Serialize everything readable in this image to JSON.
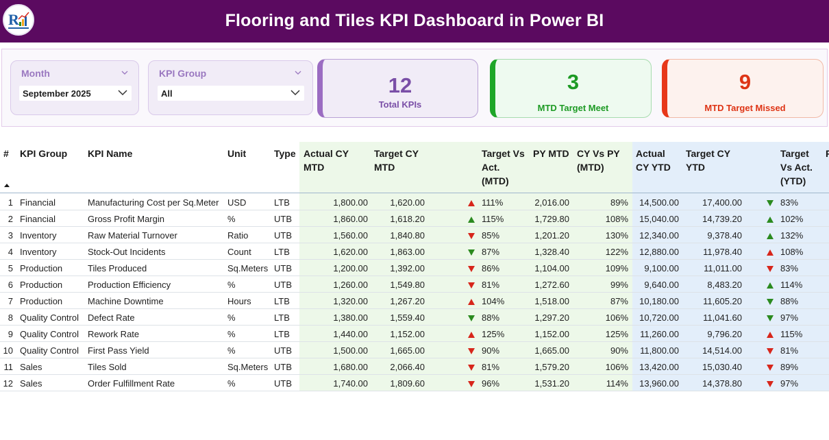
{
  "header": {
    "title": "Flooring and Tiles KPI Dashboard in Power BI"
  },
  "colors": {
    "header_bg": "#5b0a60",
    "green": "#2b8a1f",
    "red": "#d7261b",
    "accent": "#9b6cc2"
  },
  "filters": {
    "month": {
      "label": "Month",
      "value": "September 2025"
    },
    "kpi_group": {
      "label": "KPI Group",
      "value": "All"
    }
  },
  "cards": {
    "total": {
      "value": "12",
      "label": "Total KPIs"
    },
    "meet": {
      "value": "3",
      "label": "MTD Target Meet"
    },
    "missed": {
      "value": "9",
      "label": "MTD Target Missed"
    }
  },
  "table": {
    "headers": {
      "num": "#",
      "group": "KPI Group",
      "name": "KPI Name",
      "unit": "Unit",
      "type": "Type",
      "actual_mtd": [
        "Actual CY",
        "MTD"
      ],
      "target_mtd": [
        "Target CY",
        "MTD"
      ],
      "tva_mtd": [
        "Target Vs",
        "Act.",
        "(MTD)"
      ],
      "py_mtd": [
        "PY MTD"
      ],
      "cvp_mtd": [
        "CY Vs PY",
        "(MTD)"
      ],
      "actual_ytd": [
        "Actual",
        "CY YTD"
      ],
      "target_ytd": [
        "Target CY",
        "YTD"
      ],
      "tva_ytd": [
        "Target",
        "Vs Act.",
        "(YTD)"
      ],
      "extra": "P"
    },
    "rows": [
      {
        "num": "1",
        "group": "Financial",
        "name": "Manufacturing Cost per Sq.Meter",
        "unit": "USD",
        "type": "LTB",
        "actual_mtd": "1,800.00",
        "target_mtd": "1,620.00",
        "mtd_icon": "up-red",
        "mtd_pct": "111%",
        "py_mtd": "2,016.00",
        "cvp_mtd": "89%",
        "actual_ytd": "14,500.00",
        "target_ytd": "17,400.00",
        "ytd_icon": "down-green",
        "ytd_pct": "83%"
      },
      {
        "num": "2",
        "group": "Financial",
        "name": "Gross Profit Margin",
        "unit": "%",
        "type": "UTB",
        "actual_mtd": "1,860.00",
        "target_mtd": "1,618.20",
        "mtd_icon": "up-green",
        "mtd_pct": "115%",
        "py_mtd": "1,729.80",
        "cvp_mtd": "108%",
        "actual_ytd": "15,040.00",
        "target_ytd": "14,739.20",
        "ytd_icon": "up-green",
        "ytd_pct": "102%"
      },
      {
        "num": "3",
        "group": "Inventory",
        "name": "Raw Material Turnover",
        "unit": "Ratio",
        "type": "UTB",
        "actual_mtd": "1,560.00",
        "target_mtd": "1,840.80",
        "mtd_icon": "down-red",
        "mtd_pct": "85%",
        "py_mtd": "1,201.20",
        "cvp_mtd": "130%",
        "actual_ytd": "12,340.00",
        "target_ytd": "9,378.40",
        "ytd_icon": "up-green",
        "ytd_pct": "132%"
      },
      {
        "num": "4",
        "group": "Inventory",
        "name": "Stock-Out Incidents",
        "unit": "Count",
        "type": "LTB",
        "actual_mtd": "1,620.00",
        "target_mtd": "1,863.00",
        "mtd_icon": "down-green",
        "mtd_pct": "87%",
        "py_mtd": "1,328.40",
        "cvp_mtd": "122%",
        "actual_ytd": "12,880.00",
        "target_ytd": "11,978.40",
        "ytd_icon": "up-red",
        "ytd_pct": "108%"
      },
      {
        "num": "5",
        "group": "Production",
        "name": "Tiles Produced",
        "unit": "Sq.Meters",
        "type": "UTB",
        "actual_mtd": "1,200.00",
        "target_mtd": "1,392.00",
        "mtd_icon": "down-red",
        "mtd_pct": "86%",
        "py_mtd": "1,104.00",
        "cvp_mtd": "109%",
        "actual_ytd": "9,100.00",
        "target_ytd": "11,011.00",
        "ytd_icon": "down-red",
        "ytd_pct": "83%"
      },
      {
        "num": "6",
        "group": "Production",
        "name": "Production Efficiency",
        "unit": "%",
        "type": "UTB",
        "actual_mtd": "1,260.00",
        "target_mtd": "1,549.80",
        "mtd_icon": "down-red",
        "mtd_pct": "81%",
        "py_mtd": "1,272.60",
        "cvp_mtd": "99%",
        "actual_ytd": "9,640.00",
        "target_ytd": "8,483.20",
        "ytd_icon": "up-green",
        "ytd_pct": "114%"
      },
      {
        "num": "7",
        "group": "Production",
        "name": "Machine Downtime",
        "unit": "Hours",
        "type": "LTB",
        "actual_mtd": "1,320.00",
        "target_mtd": "1,267.20",
        "mtd_icon": "up-red",
        "mtd_pct": "104%",
        "py_mtd": "1,518.00",
        "cvp_mtd": "87%",
        "actual_ytd": "10,180.00",
        "target_ytd": "11,605.20",
        "ytd_icon": "down-green",
        "ytd_pct": "88%"
      },
      {
        "num": "8",
        "group": "Quality Control",
        "name": "Defect Rate",
        "unit": "%",
        "type": "LTB",
        "actual_mtd": "1,380.00",
        "target_mtd": "1,559.40",
        "mtd_icon": "down-green",
        "mtd_pct": "88%",
        "py_mtd": "1,297.20",
        "cvp_mtd": "106%",
        "actual_ytd": "10,720.00",
        "target_ytd": "11,041.60",
        "ytd_icon": "down-green",
        "ytd_pct": "97%"
      },
      {
        "num": "9",
        "group": "Quality Control",
        "name": "Rework Rate",
        "unit": "%",
        "type": "LTB",
        "actual_mtd": "1,440.00",
        "target_mtd": "1,152.00",
        "mtd_icon": "up-red",
        "mtd_pct": "125%",
        "py_mtd": "1,152.00",
        "cvp_mtd": "125%",
        "actual_ytd": "11,260.00",
        "target_ytd": "9,796.20",
        "ytd_icon": "up-red",
        "ytd_pct": "115%"
      },
      {
        "num": "10",
        "group": "Quality Control",
        "name": "First Pass Yield",
        "unit": "%",
        "type": "UTB",
        "actual_mtd": "1,500.00",
        "target_mtd": "1,665.00",
        "mtd_icon": "down-red",
        "mtd_pct": "90%",
        "py_mtd": "1,665.00",
        "cvp_mtd": "90%",
        "actual_ytd": "11,800.00",
        "target_ytd": "14,514.00",
        "ytd_icon": "down-red",
        "ytd_pct": "81%"
      },
      {
        "num": "11",
        "group": "Sales",
        "name": "Tiles Sold",
        "unit": "Sq.Meters",
        "type": "UTB",
        "actual_mtd": "1,680.00",
        "target_mtd": "2,066.40",
        "mtd_icon": "down-red",
        "mtd_pct": "81%",
        "py_mtd": "1,579.20",
        "cvp_mtd": "106%",
        "actual_ytd": "13,420.00",
        "target_ytd": "15,030.40",
        "ytd_icon": "down-red",
        "ytd_pct": "89%"
      },
      {
        "num": "12",
        "group": "Sales",
        "name": "Order Fulfillment Rate",
        "unit": "%",
        "type": "UTB",
        "actual_mtd": "1,740.00",
        "target_mtd": "1,809.60",
        "mtd_icon": "down-red",
        "mtd_pct": "96%",
        "py_mtd": "1,531.20",
        "cvp_mtd": "114%",
        "actual_ytd": "13,960.00",
        "target_ytd": "14,378.80",
        "ytd_icon": "down-red",
        "ytd_pct": "97%"
      }
    ]
  }
}
